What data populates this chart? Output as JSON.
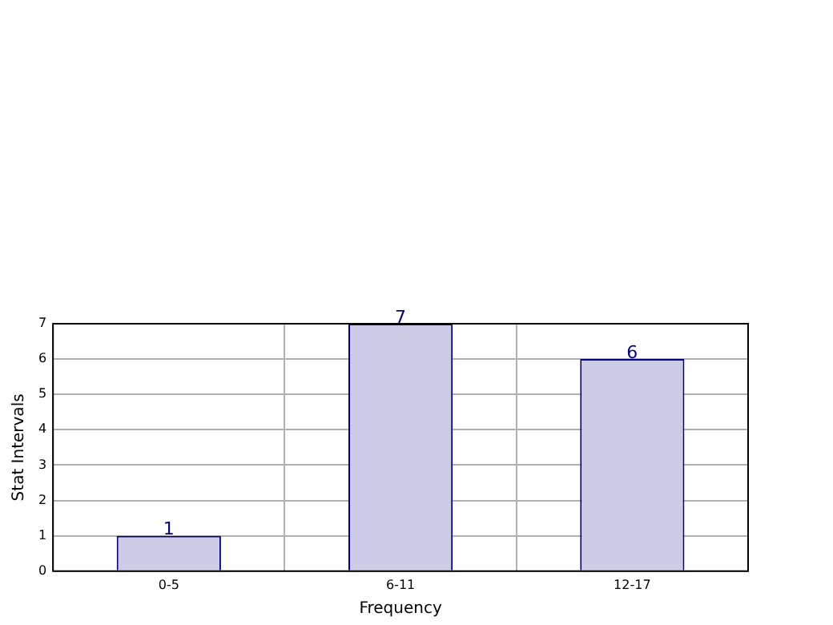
{
  "chart_data": {
    "type": "bar",
    "xlabel": "Frequency",
    "ylabel": "Stat Intervals",
    "categories": [
      "0-5",
      "6-11",
      "12-17"
    ],
    "values": [
      1,
      7,
      6
    ],
    "color": "#cccce6",
    "ylim": [
      0,
      7
    ],
    "yticks": [
      0,
      1,
      2,
      3,
      4,
      5,
      6,
      7
    ],
    "grid": true,
    "data_labels": true
  }
}
